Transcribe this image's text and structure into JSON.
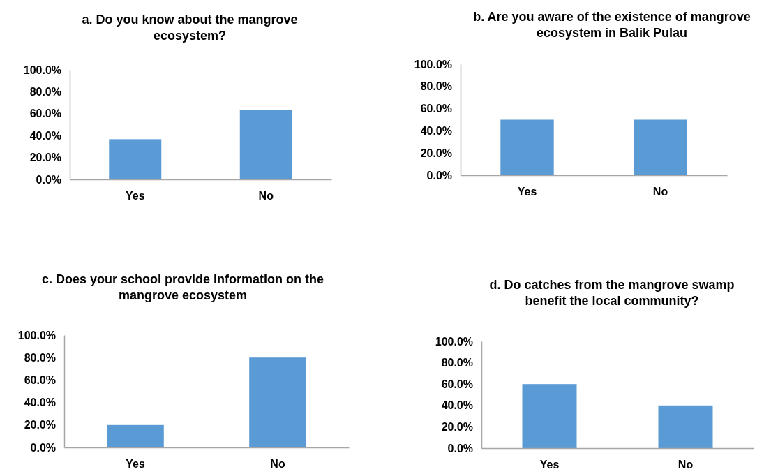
{
  "chart_data": [
    {
      "type": "bar",
      "title": "a. Do you know about the mangrove ecosystem?",
      "categories": [
        "Yes",
        "No"
      ],
      "values": [
        36.7,
        63.3
      ],
      "color": "#5b9bd5",
      "ylim": [
        0,
        100
      ],
      "yticks": [
        {
          "value": 0,
          "label": "0.0%"
        },
        {
          "value": 20,
          "label": "20.0%"
        },
        {
          "value": 40,
          "label": "40.0%"
        },
        {
          "value": 60,
          "label": "60.0%"
        },
        {
          "value": 80,
          "label": "80.0%"
        },
        {
          "value": 100,
          "label": "100.0%"
        }
      ],
      "grid": false
    },
    {
      "type": "bar",
      "title": "b. Are you aware of the existence of mangrove ecosystem in Balik Pulau",
      "categories": [
        "Yes",
        "No"
      ],
      "values": [
        50,
        50
      ],
      "color": "#5b9bd5",
      "ylim": [
        0,
        100
      ],
      "yticks": [
        {
          "value": 0,
          "label": "0.0%"
        },
        {
          "value": 20,
          "label": "20.0%"
        },
        {
          "value": 40,
          "label": "40.0%"
        },
        {
          "value": 60,
          "label": "60.0%"
        },
        {
          "value": 80,
          "label": "80.0%"
        },
        {
          "value": 100,
          "label": "100.0%"
        }
      ],
      "grid": false
    },
    {
      "type": "bar",
      "title": "c. Does your school provide information on the mangrove ecosystem",
      "categories": [
        "Yes",
        "No"
      ],
      "values": [
        20,
        80
      ],
      "color": "#5b9bd5",
      "ylim": [
        0,
        100
      ],
      "yticks": [
        {
          "value": 0,
          "label": "0.0%"
        },
        {
          "value": 20,
          "label": "20.0%"
        },
        {
          "value": 40,
          "label": "40.0%"
        },
        {
          "value": 60,
          "label": "60.0%"
        },
        {
          "value": 80,
          "label": "80.0%"
        },
        {
          "value": 100,
          "label": "100.0%"
        }
      ],
      "grid": false
    },
    {
      "type": "bar",
      "title": "d. Do catches from the mangrove swamp benefit the local community?",
      "categories": [
        "Yes",
        "No"
      ],
      "values": [
        60,
        40
      ],
      "color": "#5b9bd5",
      "ylim": [
        0,
        100
      ],
      "yticks": [
        {
          "value": 0,
          "label": "0.0%"
        },
        {
          "value": 20,
          "label": "20.0%"
        },
        {
          "value": 40,
          "label": "40.0%"
        },
        {
          "value": 60,
          "label": "60.0%"
        },
        {
          "value": 80,
          "label": "80.0%"
        },
        {
          "value": 100,
          "label": "100.0%"
        }
      ],
      "grid": false
    }
  ]
}
